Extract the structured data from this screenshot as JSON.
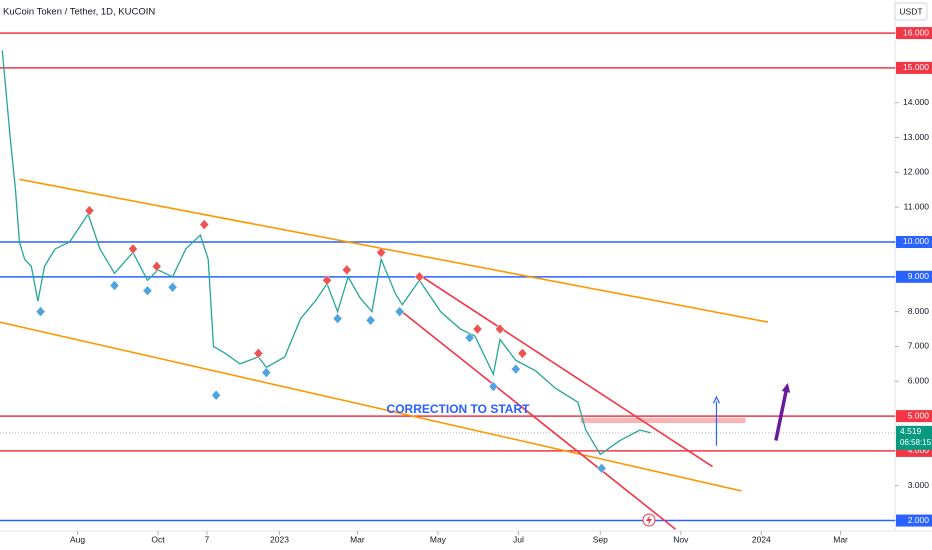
{
  "chart_data": {
    "type": "line",
    "title": "KuCoin Token / Tether, 1D, KUCOIN",
    "currency": "USDT",
    "annotation": "CORRECTION TO START",
    "countdown": "06:58:15",
    "current_price": 4.519,
    "xlim": [
      0,
      681
    ],
    "ylim": [
      1.7,
      16.95
    ],
    "xticks": [
      {
        "value": 61,
        "label": "Aug"
      },
      {
        "value": 122,
        "label": "Oct"
      },
      {
        "value": 159,
        "label": "7"
      },
      {
        "value": 214,
        "label": "2023"
      },
      {
        "value": 273,
        "label": "Mar"
      },
      {
        "value": 334,
        "label": "May"
      },
      {
        "value": 395,
        "label": "Jul"
      },
      {
        "value": 457,
        "label": "Sep"
      },
      {
        "value": 518,
        "label": "Nov"
      },
      {
        "value": 579,
        "label": "2024"
      },
      {
        "value": 639,
        "label": "Mar"
      }
    ],
    "yticks": [
      {
        "value": 2,
        "label": "2.000"
      },
      {
        "value": 3,
        "label": "3.000"
      },
      {
        "value": 4,
        "label": "4.000"
      },
      {
        "value": 5,
        "label": "5.000"
      },
      {
        "value": 6,
        "label": "6.000"
      },
      {
        "value": 7,
        "label": "7.000"
      },
      {
        "value": 8,
        "label": "8.000"
      },
      {
        "value": 9,
        "label": "9.000"
      },
      {
        "value": 10,
        "label": "10.000"
      },
      {
        "value": 11,
        "label": "11.000"
      },
      {
        "value": 12,
        "label": "12.000"
      },
      {
        "value": 13,
        "label": "13.000"
      },
      {
        "value": 14,
        "label": "14.000"
      },
      {
        "value": 15,
        "label": "15.000"
      },
      {
        "value": 16,
        "label": "16.000"
      }
    ],
    "x": [
      4,
      10,
      14,
      17,
      21,
      26,
      31,
      36,
      44,
      55,
      69,
      78,
      89,
      103,
      114,
      122,
      133,
      143,
      154,
      160,
      164,
      173,
      184,
      198,
      204,
      218,
      230,
      241,
      250,
      258,
      266,
      275,
      284,
      291,
      302,
      307,
      320,
      336,
      351,
      362,
      376,
      381,
      393,
      408,
      423,
      440,
      446,
      457,
      472,
      487,
      495
    ],
    "series": [
      {
        "color": "#26a69a",
        "values": [
          15.5,
          13,
          11.5,
          10,
          9.5,
          9.3,
          8.3,
          9.3,
          9.8,
          10.0,
          10.8,
          9.8,
          9.1,
          9.7,
          8.9,
          9.2,
          9.0,
          9.8,
          10.2,
          9.5,
          7.0,
          6.8,
          6.5,
          6.7,
          6.4,
          6.7,
          7.8,
          8.3,
          8.8,
          8.0,
          9.0,
          8.4,
          8.0,
          9.5,
          8.5,
          8.2,
          8.9,
          8.0,
          7.5,
          7.3,
          6.2,
          7.2,
          6.6,
          6.3,
          5.8,
          5.4,
          4.6,
          3.9,
          4.3,
          4.6,
          4.52
        ]
      }
    ],
    "highs": {
      "color": "#ef5350",
      "x": [
        70,
        103,
        121,
        157,
        198,
        250,
        265,
        291,
        320,
        364,
        381,
        398
      ],
      "values": [
        10.9,
        9.8,
        9.3,
        10.5,
        6.8,
        8.9,
        9.2,
        9.7,
        9.0,
        7.5,
        7.5,
        6.8
      ]
    },
    "lows": {
      "color": "#4fa3e0",
      "x": [
        33,
        89,
        114,
        133,
        166,
        204,
        258,
        283,
        305,
        358,
        376,
        393,
        458
      ],
      "values": [
        8.0,
        8.75,
        8.6,
        8.7,
        5.6,
        6.25,
        7.8,
        7.75,
        8.0,
        7.25,
        5.85,
        6.35,
        3.5
      ]
    },
    "levels": [
      {
        "value": 16,
        "color": "#f23645"
      },
      {
        "value": 15,
        "color": "#f23645"
      },
      {
        "value": 10,
        "color": "#2962ff"
      },
      {
        "value": 9,
        "color": "#2962ff"
      },
      {
        "value": 5,
        "color": "#f23645"
      },
      {
        "value": 4,
        "color": "#f23645"
      },
      {
        "value": 2,
        "color": "#2962ff"
      }
    ],
    "trendlines": [
      {
        "color": "#ff9800",
        "x": [
          17,
          584
        ],
        "y": [
          11.8,
          7.7
        ]
      },
      {
        "color": "#ff9800",
        "x": [
          2,
          564
        ],
        "y": [
          7.7,
          2.85
        ]
      },
      {
        "color": "#f23645",
        "x": [
          322,
          542
        ],
        "y": [
          9.0,
          3.55
        ]
      },
      {
        "color": "#f23645",
        "x": [
          305,
          514
        ],
        "y": [
          8.05,
          1.75
        ]
      }
    ],
    "zone": {
      "color": "#f7a8a8",
      "x": [
        442,
        567
      ],
      "y": [
        4.8,
        4.95
      ]
    },
    "arrows": [
      {
        "color": "#2962ff",
        "x": [
          545,
          545
        ],
        "y": [
          4.15,
          5.55
        ]
      },
      {
        "color": "#6a1b9a",
        "x": [
          590,
          599
        ],
        "y": [
          4.3,
          5.95
        ]
      }
    ]
  }
}
